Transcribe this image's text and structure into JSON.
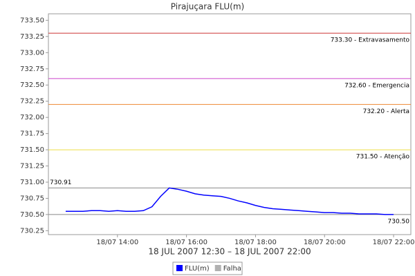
{
  "chart_data": {
    "type": "line",
    "title": "Pirajuçara FLU(m)",
    "x_label": "18 JUL 2007 12:30 – 18 JUL 2007 22:00",
    "x": [
      12.5,
      12.75,
      13,
      13.25,
      13.5,
      13.75,
      14,
      14.25,
      14.5,
      14.75,
      15,
      15.25,
      15.5,
      15.75,
      16,
      16.25,
      16.5,
      16.75,
      17,
      17.25,
      17.5,
      17.75,
      18,
      18.25,
      18.5,
      18.75,
      19,
      19.25,
      19.5,
      19.75,
      20,
      20.25,
      20.5,
      20.75,
      21,
      21.25,
      21.5,
      21.75,
      22
    ],
    "series": [
      {
        "name": "FLU(m)",
        "color": "#0000ff",
        "values": [
          730.55,
          730.55,
          730.55,
          730.56,
          730.56,
          730.55,
          730.56,
          730.55,
          730.55,
          730.56,
          730.62,
          730.78,
          730.91,
          730.89,
          730.86,
          730.82,
          730.8,
          730.79,
          730.78,
          730.75,
          730.71,
          730.68,
          730.64,
          730.61,
          730.59,
          730.58,
          730.57,
          730.56,
          730.55,
          730.54,
          730.53,
          730.53,
          730.52,
          730.52,
          730.51,
          730.51,
          730.51,
          730.5,
          730.5
        ]
      },
      {
        "name": "Falha",
        "color": "#b0b0b0",
        "values": [
          null,
          null,
          null,
          null,
          null,
          null,
          null,
          null,
          null,
          null,
          null,
          null,
          null,
          null,
          null,
          null,
          null,
          null,
          null,
          null,
          null,
          null,
          null,
          null,
          null,
          null,
          null,
          null,
          null,
          null,
          null,
          null,
          null,
          null,
          null,
          null,
          null,
          null,
          null
        ]
      }
    ],
    "thresholds": [
      {
        "value": 733.3,
        "label": "733.30 - Extravasamento",
        "color": "#cc3333"
      },
      {
        "value": 732.6,
        "label": "732.60 - Emergencia",
        "color": "#cc44cc"
      },
      {
        "value": 732.2,
        "label": "732.20 - Alerta",
        "color": "#ee8833"
      },
      {
        "value": 731.5,
        "label": "731.50 - Atenção",
        "color": "#eedd44"
      }
    ],
    "markers": [
      {
        "value": 730.91,
        "label": "730.91",
        "color": "#888888",
        "side": "left"
      },
      {
        "value": 730.5,
        "label": "730.50",
        "color": "#888888",
        "side": "right"
      }
    ],
    "xlim": [
      12,
      22.5
    ],
    "xticks": [
      {
        "value": 14,
        "label": "18/07 14:00"
      },
      {
        "value": 16,
        "label": "18/07 16:00"
      },
      {
        "value": 18,
        "label": "18/07 18:00"
      },
      {
        "value": 20,
        "label": "18/07 20:00"
      },
      {
        "value": 22,
        "label": "18/07 22:00"
      }
    ],
    "ylim": [
      730.19,
      733.6
    ],
    "yticks": [
      730.25,
      {
        "value": 730.5,
        "label": "730.50"
      },
      730.75,
      {
        "value": 731,
        "label": "731.00"
      },
      731.25,
      {
        "value": 731.5,
        "label": "731.50"
      },
      731.75,
      {
        "value": 732,
        "label": "732.00"
      },
      732.25,
      {
        "value": 732.5,
        "label": "732.50"
      },
      732.75,
      {
        "value": 733,
        "label": "733.00"
      },
      733.25,
      {
        "value": 733.5,
        "label": "733.50"
      }
    ],
    "legend": "bottom"
  }
}
